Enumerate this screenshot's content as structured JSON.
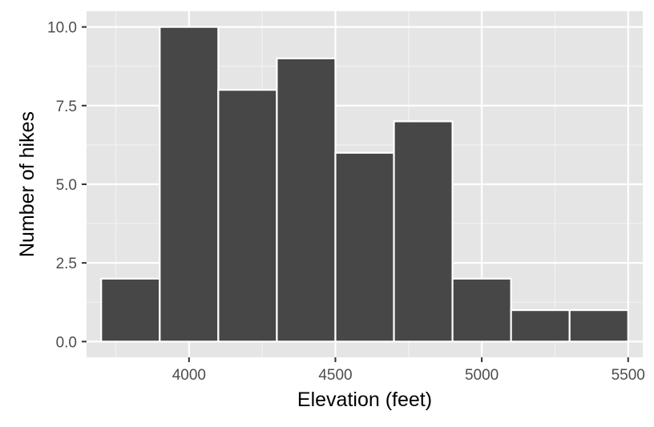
{
  "chart_data": {
    "type": "bar",
    "subtype": "histogram",
    "xlabel": "Elevation (feet)",
    "ylabel": "Number of hikes",
    "xlim": [
      3650,
      5550
    ],
    "ylim": [
      -0.5,
      10.5
    ],
    "x_ticks": [
      4000,
      4500,
      5000,
      5500
    ],
    "x_minor_ticks": [
      3750,
      4250,
      4750,
      5250
    ],
    "y_ticks": [
      0.0,
      2.5,
      5.0,
      7.5,
      10.0
    ],
    "y_minor_ticks": [
      1.25,
      3.75,
      6.25,
      8.75
    ],
    "x_tick_labels": [
      "4000",
      "4500",
      "5000",
      "5500"
    ],
    "y_tick_labels": [
      "0.0",
      "2.5",
      "5.0",
      "7.5",
      "10.0"
    ],
    "bin_width": 200,
    "bins": [
      {
        "start": 3700,
        "end": 3900,
        "count": 2
      },
      {
        "start": 3900,
        "end": 4100,
        "count": 10
      },
      {
        "start": 4100,
        "end": 4300,
        "count": 8
      },
      {
        "start": 4300,
        "end": 4500,
        "count": 9
      },
      {
        "start": 4500,
        "end": 4700,
        "count": 6
      },
      {
        "start": 4700,
        "end": 4900,
        "count": 7
      },
      {
        "start": 4900,
        "end": 5100,
        "count": 2
      },
      {
        "start": 5100,
        "end": 5300,
        "count": 1
      },
      {
        "start": 5300,
        "end": 5500,
        "count": 1
      }
    ],
    "grid": true,
    "colors": {
      "panel_background": "#e5e5e5",
      "grid_major": "#ffffff",
      "grid_minor": "#f2f2f2",
      "bar_fill": "#474747",
      "bar_outline": "#ffffff",
      "tick_label": "#4d4d4d",
      "tick_mark": "#333333",
      "axis_title": "#000000"
    }
  }
}
